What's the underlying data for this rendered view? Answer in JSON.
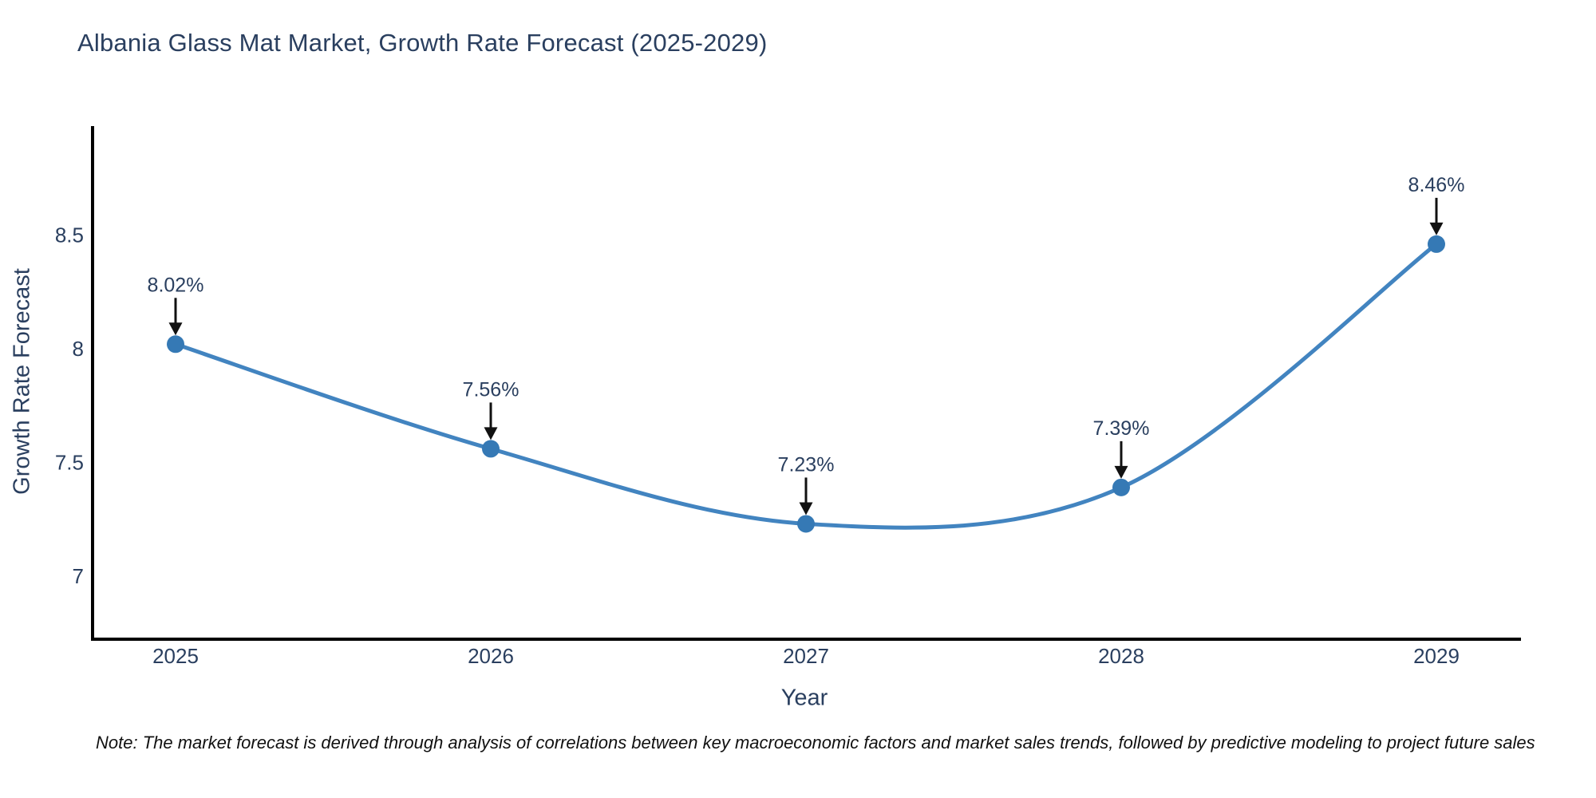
{
  "title": "Albania Glass Mat Market, Growth Rate Forecast (2025-2029)",
  "note": "Note: The market forecast is derived through analysis of correlations between key macroeconomic factors and market sales trends, followed by predictive modeling to project future sales",
  "chart_data": {
    "type": "line",
    "title": "Albania Glass Mat Market, Growth Rate Forecast (2025-2029)",
    "xlabel": "Year",
    "ylabel": "Growth Rate Forecast",
    "categories": [
      "2025",
      "2026",
      "2027",
      "2028",
      "2029"
    ],
    "series": [
      {
        "name": "Growth Rate Forecast",
        "values": [
          8.02,
          7.56,
          7.23,
          7.39,
          8.46
        ],
        "point_labels": [
          "8.02%",
          "7.56%",
          "7.23%",
          "7.39%",
          "8.46%"
        ]
      }
    ],
    "yticks": [
      7,
      7.5,
      8,
      8.5
    ],
    "ylim": [
      6.72,
      9.0
    ],
    "line_shape": "spline",
    "grid": false,
    "legend": "none",
    "annotations": "value labels with downward arrows above each point",
    "colors": {
      "line": "#4284c0",
      "marker": "#3579b5",
      "axis_line": "#000000",
      "tick_text": "#2a3f5f",
      "title_text": "#2a3f5f",
      "annotation_text": "#2a3f5f",
      "annotation_arrow": "#111111",
      "note_text": "#111111",
      "background": "#ffffff"
    }
  }
}
